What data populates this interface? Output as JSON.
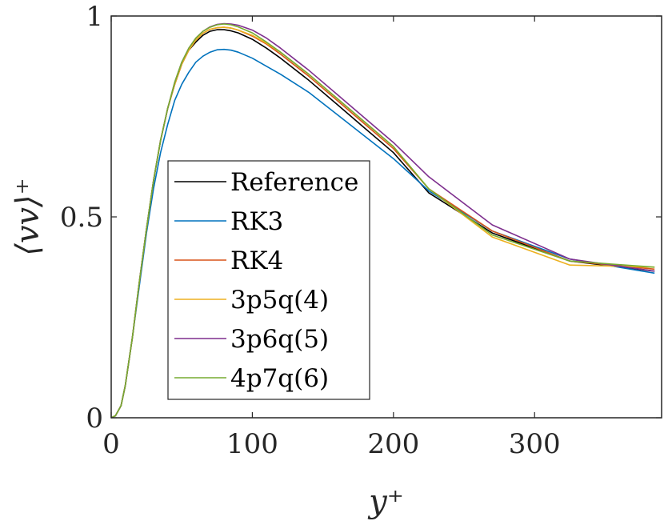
{
  "chart_data": {
    "type": "line",
    "xlabel": "y⁺",
    "ylabel": "⟨vv⟩⁺",
    "xlim": [
      0,
      390
    ],
    "ylim": [
      0,
      1
    ],
    "xticks": [
      0,
      100,
      200,
      300
    ],
    "xtick_labels": [
      "0",
      "100",
      "200",
      "300"
    ],
    "yticks": [
      0,
      0.5,
      1
    ],
    "ytick_labels": [
      "0",
      "0.5",
      "1"
    ],
    "grid": false,
    "legend_position": "lower-left",
    "series": [
      {
        "name": "Reference",
        "color": "#000000",
        "x": [
          0,
          3,
          7,
          10,
          15,
          20,
          25,
          30,
          35,
          40,
          45,
          50,
          55,
          60,
          65,
          70,
          75,
          80,
          85,
          90,
          100,
          110,
          120,
          140,
          160,
          180,
          200,
          225,
          270,
          325,
          385
        ],
        "y": [
          0,
          0.005,
          0.03,
          0.08,
          0.2,
          0.34,
          0.47,
          0.59,
          0.69,
          0.77,
          0.83,
          0.88,
          0.915,
          0.935,
          0.952,
          0.962,
          0.966,
          0.966,
          0.963,
          0.958,
          0.942,
          0.92,
          0.895,
          0.84,
          0.78,
          0.72,
          0.66,
          0.56,
          0.46,
          0.39,
          0.365
        ]
      },
      {
        "name": "RK3",
        "color": "#0072BD",
        "x": [
          0,
          3,
          7,
          10,
          15,
          20,
          25,
          30,
          35,
          40,
          45,
          50,
          55,
          60,
          65,
          70,
          75,
          80,
          85,
          90,
          100,
          110,
          120,
          140,
          160,
          180,
          200,
          225,
          270,
          325,
          385
        ],
        "y": [
          0,
          0.005,
          0.03,
          0.08,
          0.2,
          0.33,
          0.46,
          0.57,
          0.66,
          0.73,
          0.79,
          0.83,
          0.86,
          0.885,
          0.9,
          0.91,
          0.916,
          0.917,
          0.915,
          0.91,
          0.895,
          0.875,
          0.855,
          0.81,
          0.755,
          0.7,
          0.645,
          0.565,
          0.465,
          0.395,
          0.36
        ]
      },
      {
        "name": "RK4",
        "color": "#D95319",
        "x": [
          0,
          3,
          7,
          10,
          15,
          20,
          25,
          30,
          35,
          40,
          45,
          50,
          55,
          60,
          65,
          70,
          75,
          80,
          85,
          90,
          100,
          110,
          120,
          140,
          160,
          180,
          200,
          225,
          270,
          325,
          385
        ],
        "y": [
          0,
          0.005,
          0.03,
          0.08,
          0.2,
          0.34,
          0.47,
          0.59,
          0.69,
          0.77,
          0.83,
          0.88,
          0.915,
          0.94,
          0.957,
          0.967,
          0.971,
          0.972,
          0.97,
          0.965,
          0.95,
          0.93,
          0.905,
          0.85,
          0.79,
          0.73,
          0.67,
          0.57,
          0.465,
          0.39,
          0.37
        ]
      },
      {
        "name": "3p5q(4)",
        "color": "#EDB120",
        "x": [
          0,
          3,
          7,
          10,
          15,
          20,
          25,
          30,
          35,
          40,
          45,
          50,
          55,
          60,
          65,
          70,
          75,
          80,
          85,
          90,
          100,
          110,
          120,
          140,
          160,
          180,
          200,
          225,
          270,
          325,
          385
        ],
        "y": [
          0,
          0.005,
          0.03,
          0.08,
          0.2,
          0.34,
          0.47,
          0.59,
          0.69,
          0.77,
          0.83,
          0.88,
          0.915,
          0.94,
          0.957,
          0.967,
          0.971,
          0.972,
          0.97,
          0.965,
          0.952,
          0.932,
          0.91,
          0.855,
          0.795,
          0.735,
          0.675,
          0.57,
          0.45,
          0.38,
          0.375
        ]
      },
      {
        "name": "3p6q(5)",
        "color": "#7E2F8E",
        "x": [
          0,
          3,
          7,
          10,
          15,
          20,
          25,
          30,
          35,
          40,
          45,
          50,
          55,
          60,
          65,
          70,
          75,
          80,
          85,
          90,
          100,
          110,
          120,
          140,
          160,
          180,
          200,
          225,
          270,
          325,
          385
        ],
        "y": [
          0,
          0.005,
          0.03,
          0.08,
          0.2,
          0.34,
          0.47,
          0.59,
          0.69,
          0.77,
          0.835,
          0.885,
          0.92,
          0.945,
          0.962,
          0.973,
          0.979,
          0.981,
          0.98,
          0.977,
          0.965,
          0.945,
          0.92,
          0.865,
          0.805,
          0.745,
          0.685,
          0.6,
          0.48,
          0.395,
          0.365
        ]
      },
      {
        "name": "4p7q(6)",
        "color": "#77AC30",
        "x": [
          0,
          3,
          7,
          10,
          15,
          20,
          25,
          30,
          35,
          40,
          45,
          50,
          55,
          60,
          65,
          70,
          75,
          80,
          85,
          90,
          100,
          110,
          120,
          140,
          160,
          180,
          200,
          225,
          270,
          325,
          385
        ],
        "y": [
          0,
          0.005,
          0.03,
          0.08,
          0.2,
          0.34,
          0.47,
          0.59,
          0.69,
          0.77,
          0.835,
          0.885,
          0.92,
          0.945,
          0.962,
          0.972,
          0.978,
          0.98,
          0.978,
          0.973,
          0.958,
          0.935,
          0.91,
          0.855,
          0.795,
          0.735,
          0.675,
          0.57,
          0.455,
          0.39,
          0.375
        ]
      }
    ]
  }
}
